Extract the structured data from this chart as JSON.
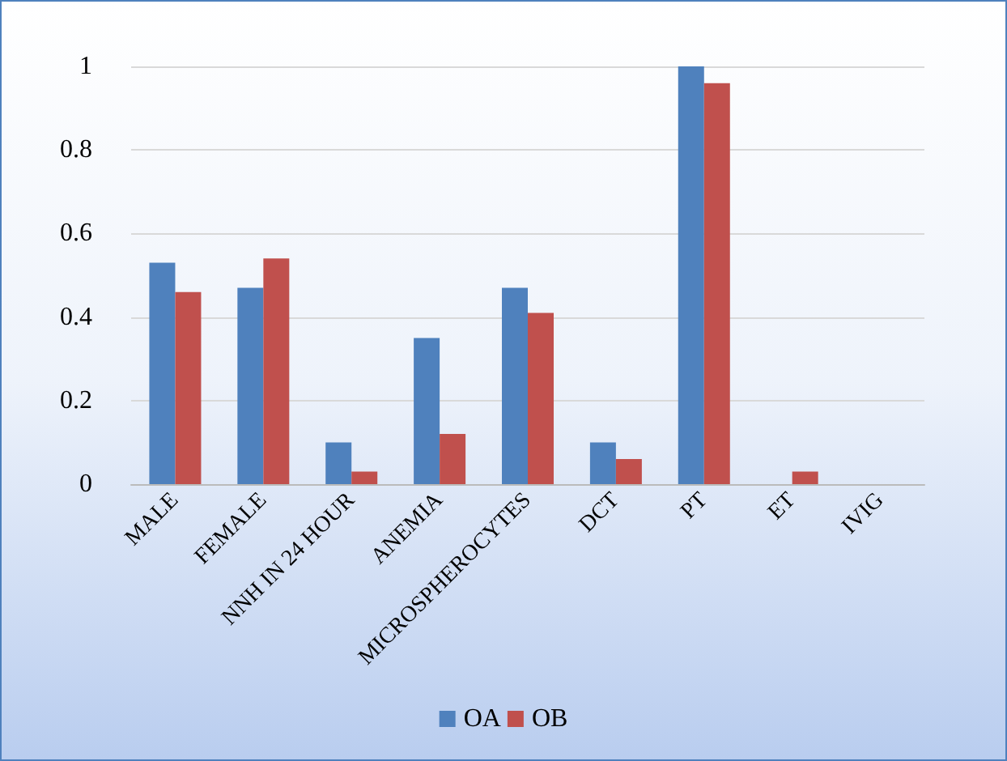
{
  "chart_data": {
    "type": "bar",
    "categories": [
      "MALE",
      "FEMALE",
      "NNH IN 24 HOUR",
      "ANEMIA",
      "MICROSPHEROCYTES",
      "DCT",
      "PT",
      "ET",
      "IVIG"
    ],
    "series": [
      {
        "name": "OA",
        "color": "#4f81bd",
        "values": [
          0.53,
          0.47,
          0.1,
          0.35,
          0.47,
          0.1,
          1,
          0,
          0
        ]
      },
      {
        "name": "OB",
        "color": "#c0504d",
        "values": [
          0.46,
          0.54,
          0.03,
          0.12,
          0.41,
          0.06,
          0.96,
          0.03,
          0
        ]
      }
    ],
    "ylim": [
      0,
      1
    ],
    "yticks": [
      0,
      0.2,
      0.4,
      0.6,
      0.8,
      1
    ],
    "grid": "y",
    "legend": "bottom"
  }
}
